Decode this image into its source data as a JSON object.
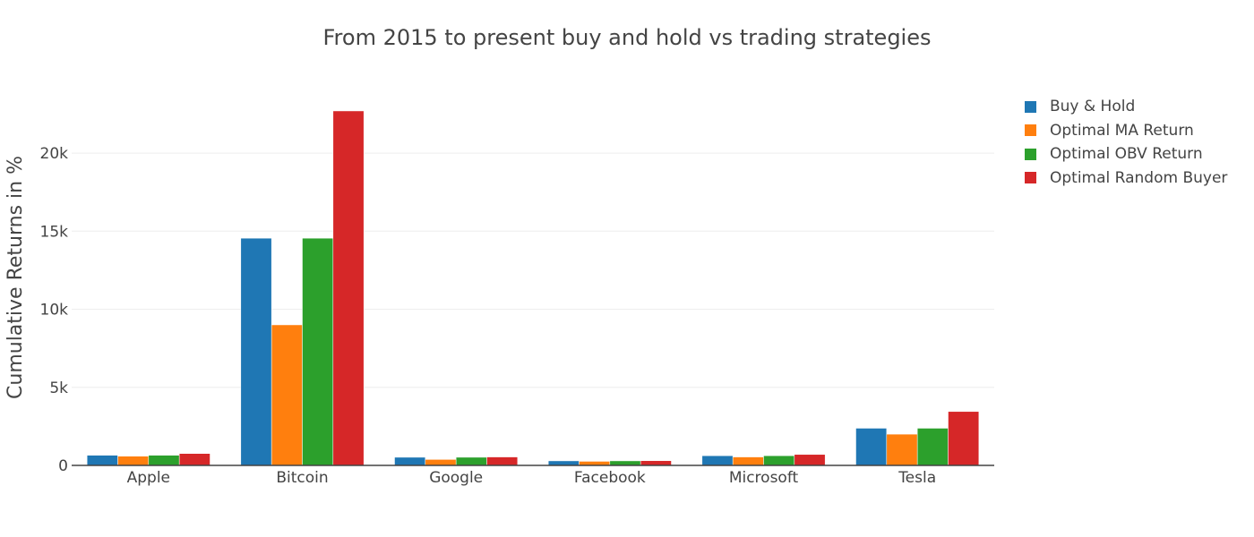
{
  "chart_data": {
    "type": "bar",
    "title": "From 2015 to present buy and hold vs trading strategies",
    "xlabel": "",
    "ylabel": "Cumulative Returns in %",
    "ylim": [
      0,
      23500
    ],
    "yticks": [
      0,
      5000,
      10000,
      15000,
      20000
    ],
    "ytick_labels": [
      "0",
      "5k",
      "10k",
      "15k",
      "20k"
    ],
    "grid": true,
    "legend_position": "top-right",
    "categories": [
      "Apple",
      "Bitcoin",
      "Google",
      "Facebook",
      "Microsoft",
      "Tesla"
    ],
    "series": [
      {
        "name": "Buy & Hold",
        "color": "#1f77b4",
        "values": [
          650,
          14550,
          520,
          290,
          620,
          2380
        ]
      },
      {
        "name": "Optimal MA Return",
        "color": "#ff7f0e",
        "values": [
          590,
          9000,
          380,
          260,
          540,
          2000
        ]
      },
      {
        "name": "Optimal OBV Return",
        "color": "#2ca02c",
        "values": [
          650,
          14550,
          520,
          290,
          620,
          2380
        ]
      },
      {
        "name": "Optimal Random Buyer",
        "color": "#d62728",
        "values": [
          760,
          22700,
          540,
          300,
          700,
          3450
        ]
      }
    ]
  }
}
